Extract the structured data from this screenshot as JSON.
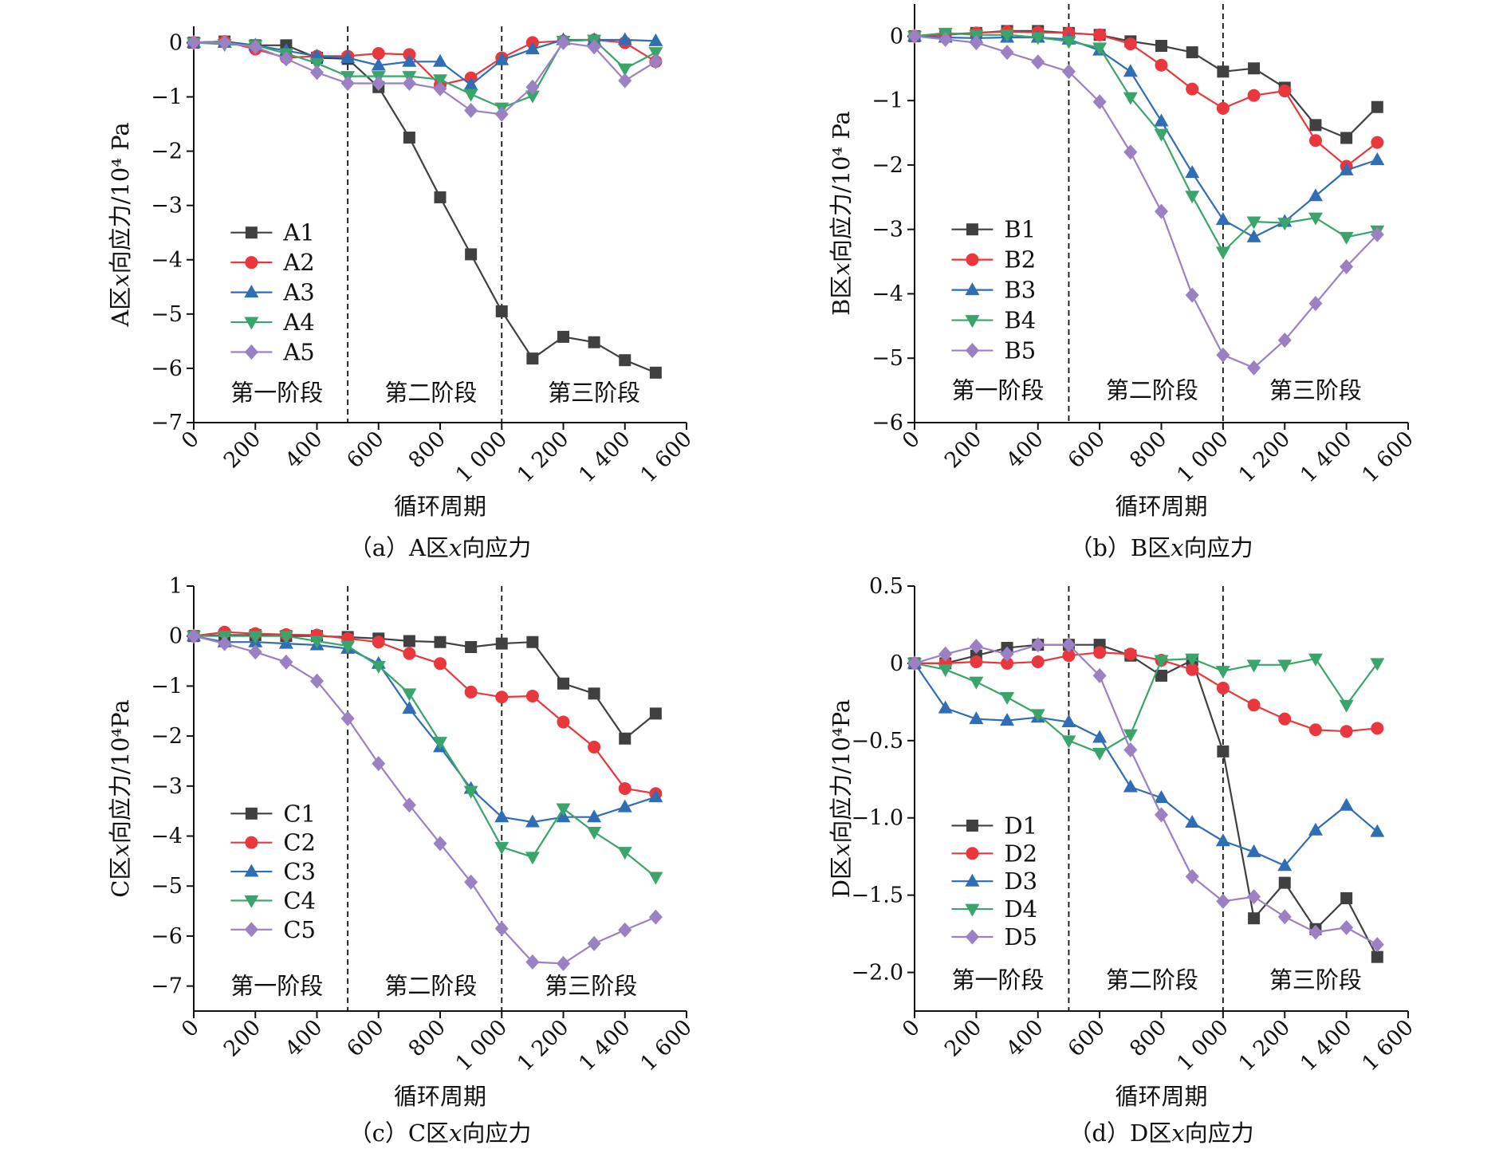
{
  "chart_data": [
    {
      "type": "line",
      "panel": "a",
      "caption": "（a）A区x向应力",
      "xlabel": "循环周期",
      "ylabel": "A区x向应力/10⁴ Pa",
      "xlim": [
        0,
        1600
      ],
      "ylim": [
        -7,
        0.3
      ],
      "xticks": [
        0,
        200,
        400,
        600,
        800,
        1000,
        1200,
        1400,
        1600
      ],
      "xtick_labels": [
        "0",
        "200",
        "400",
        "600",
        "800",
        "1 000",
        "1 200",
        "1 400",
        "1 600"
      ],
      "yticks": [
        0,
        -1,
        -2,
        -3,
        -4,
        -5,
        -6,
        -7
      ],
      "ytick_labels": [
        "0",
        "−1",
        "−2",
        "−3",
        "−4",
        "−5",
        "−6",
        "−7"
      ],
      "stage_lines": [
        500,
        1000
      ],
      "stages": [
        {
          "label": "第一阶段",
          "x": 270,
          "y": -6.45
        },
        {
          "label": "第二阶段",
          "x": 770,
          "y": -6.45
        },
        {
          "label": "第三阶段",
          "x": 1300,
          "y": -6.45
        }
      ],
      "legend_anchor": {
        "x": 120,
        "y": -3.5,
        "dy": 0.55
      },
      "grid": false,
      "x": [
        0,
        100,
        200,
        300,
        400,
        500,
        600,
        700,
        800,
        900,
        1000,
        1100,
        1200,
        1300,
        1400,
        1500
      ],
      "series": [
        {
          "name": "A1",
          "color": "#404040",
          "marker": "square",
          "values": [
            0,
            0.02,
            -0.05,
            -0.05,
            -0.28,
            -0.3,
            -0.82,
            -1.75,
            -2.85,
            -3.9,
            -4.95,
            -5.82,
            -5.42,
            -5.52,
            -5.85,
            -6.08
          ]
        },
        {
          "name": "A2",
          "color": "#e8383d",
          "marker": "circle",
          "values": [
            0,
            0.02,
            -0.12,
            -0.28,
            -0.25,
            -0.25,
            -0.2,
            -0.22,
            -0.78,
            -0.65,
            -0.28,
            0.0,
            0.03,
            0.05,
            0.0,
            -0.35
          ]
        },
        {
          "name": "A3",
          "color": "#2f6db5",
          "marker": "triangle-up",
          "values": [
            0,
            0.0,
            -0.05,
            -0.15,
            -0.25,
            -0.28,
            -0.42,
            -0.35,
            -0.35,
            -0.78,
            -0.32,
            -0.12,
            0.05,
            0.05,
            0.05,
            0.03
          ]
        },
        {
          "name": "A4",
          "color": "#3aa56a",
          "marker": "triangle-down",
          "values": [
            0,
            -0.03,
            -0.05,
            -0.2,
            -0.38,
            -0.62,
            -0.62,
            -0.62,
            -0.68,
            -0.95,
            -1.2,
            -0.98,
            0.03,
            0.05,
            -0.48,
            -0.18
          ]
        },
        {
          "name": "A5",
          "color": "#9b80c4",
          "marker": "diamond",
          "values": [
            0,
            0.0,
            -0.08,
            -0.3,
            -0.55,
            -0.75,
            -0.75,
            -0.75,
            -0.85,
            -1.25,
            -1.32,
            -0.82,
            0.0,
            -0.08,
            -0.7,
            -0.35
          ]
        }
      ]
    },
    {
      "type": "line",
      "panel": "b",
      "caption": "（b）B区x向应力",
      "xlabel": "循环周期",
      "ylabel": "B区x向应力/10⁴ Pa",
      "xlim": [
        0,
        1600
      ],
      "ylim": [
        -6,
        0.5
      ],
      "xticks": [
        0,
        200,
        400,
        600,
        800,
        1000,
        1200,
        1400,
        1600
      ],
      "xtick_labels": [
        "0",
        "200",
        "400",
        "600",
        "800",
        "1 000",
        "1 200",
        "1 400",
        "1 600"
      ],
      "yticks": [
        0,
        -1,
        -2,
        -3,
        -4,
        -5,
        -6
      ],
      "ytick_labels": [
        "0",
        "−1",
        "−2",
        "−3",
        "−4",
        "−5",
        "−6"
      ],
      "stage_lines": [
        500,
        1000
      ],
      "stages": [
        {
          "label": "第一阶段",
          "x": 270,
          "y": -5.5
        },
        {
          "label": "第二阶段",
          "x": 770,
          "y": -5.5
        },
        {
          "label": "第三阶段",
          "x": 1300,
          "y": -5.5
        }
      ],
      "legend_anchor": {
        "x": 120,
        "y": -3.0,
        "dy": 0.47
      },
      "grid": false,
      "x": [
        0,
        100,
        200,
        300,
        400,
        500,
        600,
        700,
        800,
        900,
        1000,
        1100,
        1200,
        1300,
        1400,
        1500
      ],
      "series": [
        {
          "name": "B1",
          "color": "#404040",
          "marker": "square",
          "values": [
            0,
            0.03,
            0.05,
            0.08,
            0.08,
            0.05,
            0.02,
            -0.08,
            -0.15,
            -0.25,
            -0.55,
            -0.5,
            -0.8,
            -1.38,
            -1.58,
            -1.1
          ]
        },
        {
          "name": "B2",
          "color": "#e8383d",
          "marker": "circle",
          "values": [
            0,
            0.02,
            0.05,
            0.07,
            0.06,
            0.05,
            0.02,
            -0.12,
            -0.45,
            -0.82,
            -1.12,
            -0.92,
            -0.85,
            -1.62,
            -2.02,
            -1.65
          ]
        },
        {
          "name": "B3",
          "color": "#2f6db5",
          "marker": "triangle-up",
          "values": [
            0,
            -0.02,
            -0.03,
            -0.02,
            -0.02,
            -0.05,
            -0.22,
            -0.55,
            -1.32,
            -2.12,
            -2.85,
            -3.12,
            -2.88,
            -2.48,
            -2.08,
            -1.92
          ]
        },
        {
          "name": "B4",
          "color": "#3aa56a",
          "marker": "triangle-down",
          "values": [
            0,
            0.05,
            0.02,
            0.02,
            -0.02,
            -0.08,
            -0.18,
            -0.95,
            -1.52,
            -2.48,
            -3.35,
            -2.88,
            -2.9,
            -2.82,
            -3.12,
            -3.02
          ]
        },
        {
          "name": "B5",
          "color": "#9b80c4",
          "marker": "diamond",
          "values": [
            0,
            -0.05,
            -0.1,
            -0.25,
            -0.4,
            -0.55,
            -1.02,
            -1.8,
            -2.72,
            -4.02,
            -4.95,
            -5.15,
            -4.72,
            -4.15,
            -3.58,
            -3.08
          ]
        }
      ]
    },
    {
      "type": "line",
      "panel": "c",
      "caption": "（c）C区x向应力",
      "xlabel": "循环周期",
      "ylabel": "C区x向应力/10⁴Pa",
      "xlim": [
        0,
        1600
      ],
      "ylim": [
        -7.5,
        1
      ],
      "xticks": [
        0,
        200,
        400,
        600,
        800,
        1000,
        1200,
        1400,
        1600
      ],
      "xtick_labels": [
        "0",
        "200",
        "400",
        "600",
        "800",
        "1 000",
        "1 200",
        "1 400",
        "1 600"
      ],
      "yticks": [
        1,
        0,
        -1,
        -2,
        -3,
        -4,
        -5,
        -6,
        -7
      ],
      "ytick_labels": [
        "1",
        "0",
        "−1",
        "−2",
        "−3",
        "−4",
        "−5",
        "−6",
        "−7"
      ],
      "stage_lines": [
        500,
        1000
      ],
      "stages": [
        {
          "label": "第一阶段",
          "x": 270,
          "y": -7.0
        },
        {
          "label": "第二阶段",
          "x": 770,
          "y": -7.0
        },
        {
          "label": "第三阶段",
          "x": 1290,
          "y": -7.0
        }
      ],
      "legend_anchor": {
        "x": 120,
        "y": -3.55,
        "dy": 0.58
      },
      "grid": false,
      "x": [
        0,
        100,
        200,
        300,
        400,
        500,
        600,
        700,
        800,
        900,
        1000,
        1100,
        1200,
        1300,
        1400,
        1500
      ],
      "series": [
        {
          "name": "C1",
          "color": "#404040",
          "marker": "square",
          "values": [
            0,
            0.02,
            0.02,
            0.0,
            0.0,
            -0.02,
            -0.05,
            -0.1,
            -0.12,
            -0.22,
            -0.15,
            -0.12,
            -0.95,
            -1.15,
            -2.05,
            -1.55
          ]
        },
        {
          "name": "C2",
          "color": "#e8383d",
          "marker": "circle",
          "values": [
            0,
            0.08,
            0.05,
            0.03,
            0.02,
            -0.05,
            -0.12,
            -0.35,
            -0.55,
            -1.12,
            -1.22,
            -1.2,
            -1.72,
            -2.22,
            -3.05,
            -3.15
          ]
        },
        {
          "name": "C3",
          "color": "#2f6db5",
          "marker": "triangle-up",
          "values": [
            0,
            -0.12,
            -0.12,
            -0.15,
            -0.18,
            -0.25,
            -0.55,
            -1.45,
            -2.22,
            -3.05,
            -3.62,
            -3.72,
            -3.62,
            -3.62,
            -3.42,
            -3.22
          ]
        },
        {
          "name": "C4",
          "color": "#3aa56a",
          "marker": "triangle-down",
          "values": [
            0,
            0.0,
            0.0,
            0.0,
            -0.1,
            -0.2,
            -0.6,
            -1.15,
            -2.12,
            -3.1,
            -4.22,
            -4.42,
            -3.45,
            -3.92,
            -4.32,
            -4.82
          ]
        },
        {
          "name": "C5",
          "color": "#9b80c4",
          "marker": "diamond",
          "values": [
            0,
            -0.15,
            -0.32,
            -0.52,
            -0.9,
            -1.65,
            -2.55,
            -3.38,
            -4.15,
            -4.92,
            -5.85,
            -6.52,
            -6.55,
            -6.15,
            -5.88,
            -5.62
          ]
        }
      ]
    },
    {
      "type": "line",
      "panel": "d",
      "caption": "（d）D区x向应力",
      "xlabel": "循环周期",
      "ylabel": "D区x向应力/10⁴Pa",
      "xlim": [
        0,
        1600
      ],
      "ylim": [
        -2.25,
        0.5
      ],
      "xticks": [
        0,
        200,
        400,
        600,
        800,
        1000,
        1200,
        1400,
        1600
      ],
      "xtick_labels": [
        "0",
        "200",
        "400",
        "600",
        "800",
        "1 000",
        "1 200",
        "1 400",
        "1 600"
      ],
      "yticks": [
        0.5,
        0,
        -0.5,
        -1.0,
        -1.5,
        -2.0
      ],
      "ytick_labels": [
        "0.5",
        "0",
        "−0.5",
        "−1.0",
        "−1.5",
        "−2.0"
      ],
      "stage_lines": [
        500,
        1000
      ],
      "stages": [
        {
          "label": "第一阶段",
          "x": 270,
          "y": -2.05
        },
        {
          "label": "第二阶段",
          "x": 770,
          "y": -2.05
        },
        {
          "label": "第三阶段",
          "x": 1300,
          "y": -2.05
        }
      ],
      "legend_anchor": {
        "x": 120,
        "y": -1.05,
        "dy": 0.18
      },
      "grid": false,
      "x": [
        0,
        100,
        200,
        300,
        400,
        500,
        600,
        700,
        800,
        900,
        1000,
        1100,
        1200,
        1300,
        1400,
        1500
      ],
      "series": [
        {
          "name": "D1",
          "color": "#404040",
          "marker": "square",
          "values": [
            0,
            0.0,
            0.05,
            0.1,
            0.12,
            0.12,
            0.12,
            0.05,
            -0.08,
            0.02,
            -0.57,
            -1.65,
            -1.42,
            -1.72,
            -1.52,
            -1.9
          ]
        },
        {
          "name": "D2",
          "color": "#e8383d",
          "marker": "circle",
          "values": [
            0,
            0.0,
            0.01,
            0.0,
            0.01,
            0.05,
            0.07,
            0.06,
            0.02,
            -0.04,
            -0.16,
            -0.27,
            -0.36,
            -0.43,
            -0.44,
            -0.42
          ]
        },
        {
          "name": "D3",
          "color": "#2f6db5",
          "marker": "triangle-up",
          "values": [
            0,
            -0.29,
            -0.36,
            -0.37,
            -0.35,
            -0.38,
            -0.48,
            -0.8,
            -0.87,
            -1.03,
            -1.15,
            -1.22,
            -1.31,
            -1.08,
            -0.92,
            -1.09
          ]
        },
        {
          "name": "D4",
          "color": "#3aa56a",
          "marker": "triangle-down",
          "values": [
            0,
            -0.04,
            -0.12,
            -0.22,
            -0.33,
            -0.5,
            -0.58,
            -0.46,
            0.02,
            0.03,
            -0.05,
            -0.01,
            -0.01,
            0.03,
            -0.27,
            0.0
          ]
        },
        {
          "name": "D5",
          "color": "#9b80c4",
          "marker": "diamond",
          "values": [
            0,
            0.06,
            0.11,
            0.06,
            0.12,
            0.12,
            -0.08,
            -0.56,
            -0.98,
            -1.38,
            -1.54,
            -1.51,
            -1.64,
            -1.74,
            -1.71,
            -1.82
          ]
        }
      ]
    }
  ]
}
